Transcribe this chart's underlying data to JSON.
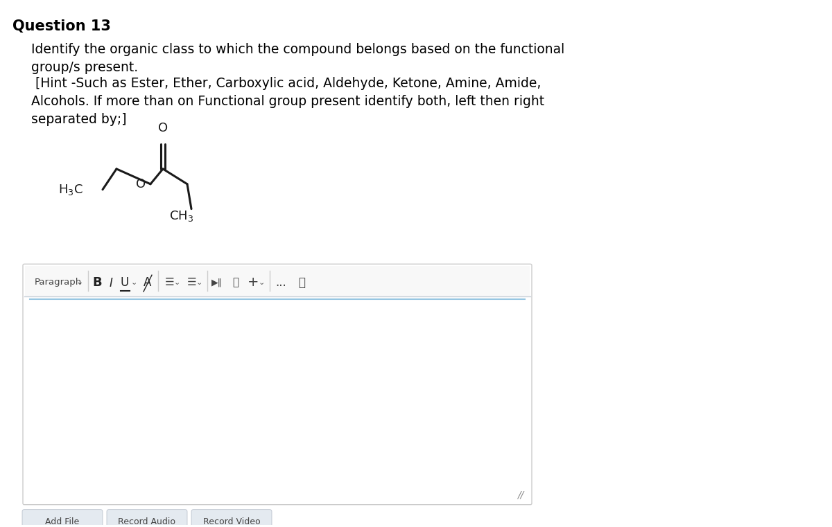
{
  "title": "Question 13",
  "question_text_line1": "Identify the organic class to which the compound belongs based on the functional",
  "question_text_line2": "group/s present.",
  "hint_line1": " [Hint -Such as Ester, Ether, Carboxylic acid, Aldehyde, Ketone, Amine, Amide,",
  "hint_line2": "Alcohols. If more than on Functional group present identify both, left then right",
  "hint_line3": "separated by;]",
  "bg_color": "#ffffff",
  "text_color": "#000000",
  "toolbar_bg": "#ffffff",
  "toolbar_border": "#cccccc",
  "editor_border": "#cccccc",
  "editor_bg": "#ffffff",
  "button_bg": "#e8edf2",
  "molecule_color": "#000000",
  "oxygen_color": "#000000"
}
